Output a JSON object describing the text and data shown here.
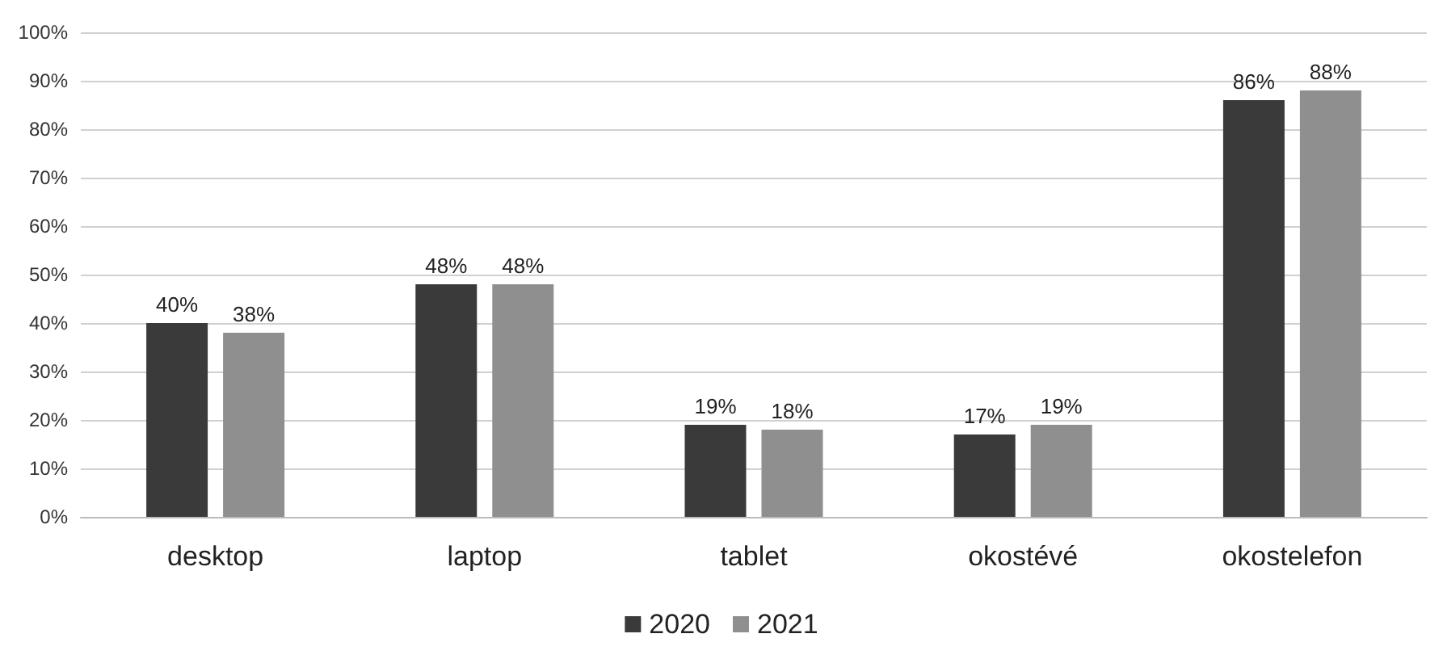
{
  "chart_data": {
    "type": "bar",
    "categories": [
      "desktop",
      "laptop",
      "tablet",
      "okostévé",
      "okostelefon"
    ],
    "series": [
      {
        "name": "2020",
        "color": "#3a3a3a",
        "values": [
          40,
          48,
          19,
          17,
          86
        ],
        "value_labels": [
          "40%",
          "48%",
          "19%",
          "17%",
          "86%"
        ]
      },
      {
        "name": "2021",
        "color": "#8f8f8f",
        "values": [
          38,
          48,
          18,
          19,
          88
        ],
        "value_labels": [
          "38%",
          "48%",
          "18%",
          "19%",
          "88%"
        ]
      }
    ],
    "ylim": [
      0,
      100
    ],
    "yticks": [
      {
        "value": 0,
        "label": "0%"
      },
      {
        "value": 10,
        "label": "10%"
      },
      {
        "value": 20,
        "label": "20%"
      },
      {
        "value": 30,
        "label": "30%"
      },
      {
        "value": 40,
        "label": "40%"
      },
      {
        "value": 50,
        "label": "50%"
      },
      {
        "value": 60,
        "label": "60%"
      },
      {
        "value": 70,
        "label": "70%"
      },
      {
        "value": 80,
        "label": "80%"
      },
      {
        "value": 90,
        "label": "90%"
      },
      {
        "value": 100,
        "label": "100%"
      }
    ],
    "grid": "y",
    "legend": "bottom"
  }
}
